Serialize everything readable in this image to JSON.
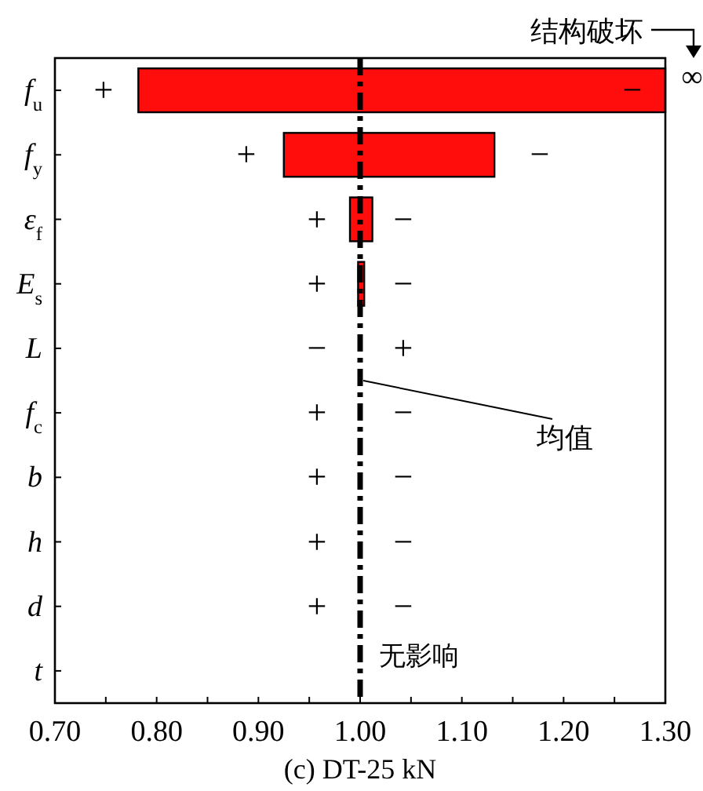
{
  "chart_data": {
    "type": "bar",
    "orientation": "horizontal",
    "xlabel": "(c) DT-25 kN",
    "categories": [
      "*f*$_{u}$",
      "*f*$_{y}$",
      "*ε*$_{f}$",
      "*E*$_{s}$",
      "*L*",
      "*f*$_{c}$",
      "*b*",
      "*h*",
      "*d*",
      "*t*"
    ],
    "base": [
      0.782,
      0.925,
      0.99,
      0.998,
      null,
      null,
      null,
      null,
      null,
      null
    ],
    "values": [
      0.518,
      0.207,
      0.022,
      0.006,
      null,
      null,
      null,
      null,
      null,
      null
    ],
    "color": "#ff0d0d",
    "xlim": [
      0.7,
      1.3
    ],
    "xticks": [
      {
        "value": 0.7,
        "label": "0.70"
      },
      {
        "value": 0.75,
        "label": null
      },
      {
        "value": 0.8,
        "label": "0.80"
      },
      {
        "value": 0.85,
        "label": null
      },
      {
        "value": 0.9,
        "label": "0.90"
      },
      {
        "value": 0.95,
        "label": null
      },
      {
        "value": 1.0,
        "label": "1.00"
      },
      {
        "value": 1.05,
        "label": null
      },
      {
        "value": 1.1,
        "label": "1.10"
      },
      {
        "value": 1.15,
        "label": null
      },
      {
        "value": 1.2,
        "label": "1.20"
      },
      {
        "value": 1.25,
        "label": null
      },
      {
        "value": 1.3,
        "label": "1.30"
      }
    ],
    "ref_lines": [
      {
        "axis": "x",
        "value": 1.0,
        "label": "均值",
        "color": "#000000",
        "line_style": "dashdot"
      }
    ],
    "annotations": [
      "结构破坏",
      "∞",
      {
        "text": "无影响",
        "x": 1.0,
        "y": "*t*"
      },
      "+",
      "−",
      "+",
      "−",
      "+",
      "−",
      "+",
      "−",
      "−",
      "+",
      "+",
      "−",
      "+",
      "−",
      "+",
      "−",
      "+",
      "−"
    ]
  }
}
